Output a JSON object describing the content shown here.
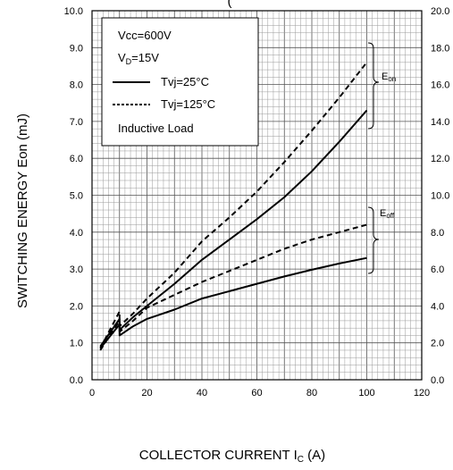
{
  "chart_data": {
    "type": "line",
    "title_fragment": "(",
    "xlabel_main": "COLLECTOR CURRENT I",
    "xlabel_sub": "C",
    "xlabel_unit": " (A)",
    "ylabel": "SWITCHING ENERGY Eon (mJ)",
    "xlim": [
      0,
      120
    ],
    "ylim": [
      0,
      10
    ],
    "y2lim": [
      0,
      20
    ],
    "x_ticks": [
      0,
      20,
      40,
      60,
      80,
      100,
      120
    ],
    "y_ticks": [
      "0.0",
      "1.0",
      "2.0",
      "3.0",
      "4.0",
      "5.0",
      "6.0",
      "7.0",
      "8.0",
      "9.0",
      "10.0"
    ],
    "y2_ticks": [
      "0.0",
      "2.0",
      "4.0",
      "6.0",
      "8.0",
      "10.0",
      "12.0",
      "14.0",
      "16.0",
      "18.0",
      "20.0"
    ],
    "grid": true,
    "legend": {
      "position": "top-left",
      "conditions": [
        {
          "main": "Vcc=600V",
          "sub": ""
        },
        {
          "main": "V",
          "sub": "D",
          "rest": "=15V"
        }
      ],
      "entries": [
        {
          "label": "Tvj=25°C",
          "style": "solid"
        },
        {
          "label": "Tvj=125°C",
          "style": "dashed"
        }
      ],
      "note": "Inductive Load"
    },
    "annotations": [
      {
        "main": "E",
        "sub": "on"
      },
      {
        "main": "E",
        "sub": "off"
      }
    ],
    "series": [
      {
        "style": "solid",
        "group": "Eon",
        "x": [
          3,
          10,
          10,
          15,
          20,
          30,
          40,
          50,
          60,
          70,
          80,
          90,
          100
        ],
        "y": [
          0.9,
          1.65,
          1.35,
          1.7,
          2.0,
          2.6,
          3.25,
          3.8,
          4.35,
          4.95,
          5.65,
          6.45,
          7.3
        ]
      },
      {
        "style": "dashed",
        "group": "Eon",
        "x": [
          3,
          10,
          10,
          15,
          20,
          30,
          40,
          50,
          60,
          70,
          80,
          90,
          100
        ],
        "y": [
          0.85,
          1.85,
          1.45,
          1.8,
          2.2,
          2.9,
          3.75,
          4.4,
          5.1,
          5.9,
          6.75,
          7.65,
          8.6
        ]
      },
      {
        "style": "solid",
        "group": "Eoff",
        "x": [
          3,
          10,
          10,
          15,
          20,
          30,
          40,
          50,
          60,
          70,
          80,
          90,
          100
        ],
        "y": [
          0.85,
          1.5,
          1.2,
          1.45,
          1.65,
          1.9,
          2.2,
          2.4,
          2.6,
          2.8,
          2.98,
          3.15,
          3.3
        ]
      },
      {
        "style": "dashed",
        "group": "Eoff",
        "x": [
          3,
          10,
          10,
          15,
          20,
          30,
          40,
          50,
          60,
          70,
          80,
          90,
          100
        ],
        "y": [
          0.8,
          1.6,
          1.3,
          1.6,
          1.95,
          2.3,
          2.65,
          2.95,
          3.25,
          3.55,
          3.8,
          4.0,
          4.2
        ]
      }
    ]
  }
}
